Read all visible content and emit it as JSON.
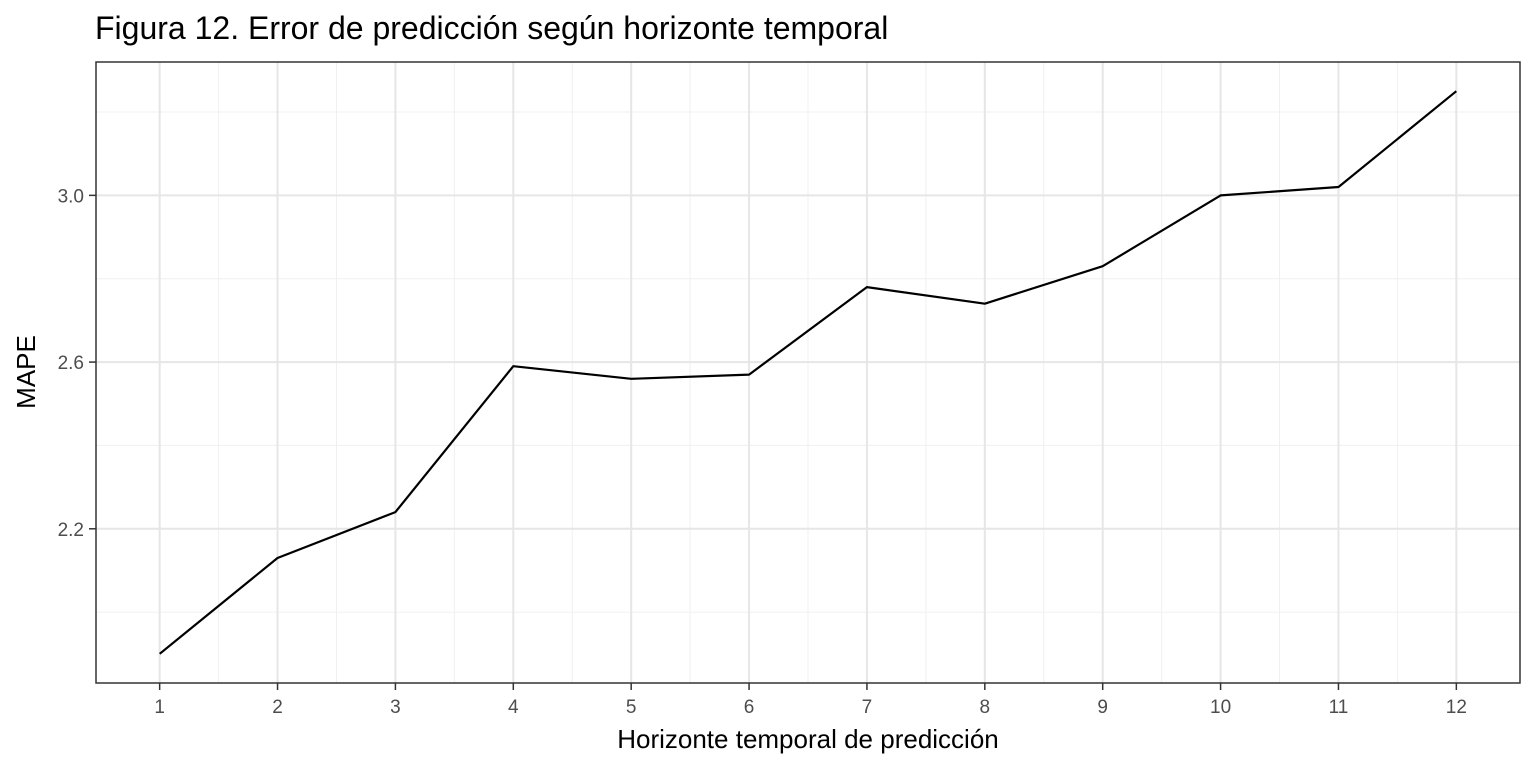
{
  "chart_data": {
    "type": "line",
    "title": "Figura 12. Error de predicción según horizonte temporal",
    "xlabel": "Horizonte temporal de predicción",
    "ylabel": "MAPE",
    "x": [
      1,
      2,
      3,
      4,
      5,
      6,
      7,
      8,
      9,
      10,
      11,
      12
    ],
    "x_tick_labels": [
      "1",
      "2",
      "3",
      "4",
      "5",
      "6",
      "7",
      "8",
      "9",
      "10",
      "11",
      "12"
    ],
    "y_tick_values": [
      2.2,
      2.6,
      3.0
    ],
    "y_tick_labels": [
      "2.2",
      "2.6",
      "3.0"
    ],
    "series": [
      {
        "values": [
          1.9,
          2.13,
          2.24,
          2.59,
          2.56,
          2.57,
          2.78,
          2.74,
          2.83,
          3.0,
          3.02,
          3.25
        ]
      }
    ],
    "xlim": [
      0.46,
      12.54
    ],
    "ylim": [
      1.83,
      3.32
    ],
    "grid": true,
    "colors": {
      "line": "#000000",
      "grid_major": "#e6e6e6",
      "grid_minor": "#f0f0f0",
      "panel_border": "#333333"
    }
  }
}
